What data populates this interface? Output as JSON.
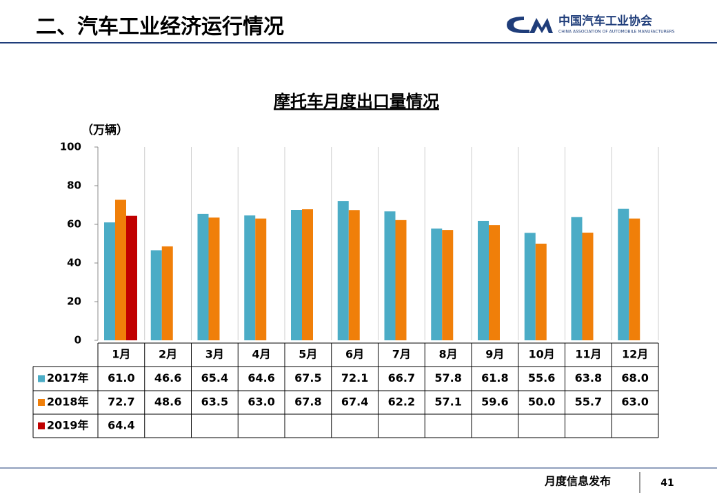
{
  "header": {
    "title": "二、汽车工业经济运行情况",
    "org_name": "中国汽车工业协会",
    "org_name_en": "CHINA ASSOCIATION OF AUTOMOBILE MANUFACTURERS"
  },
  "footer": {
    "text": "月度信息发布",
    "page": "41"
  },
  "chart_data": {
    "type": "bar",
    "title": "摩托车月度出口量情况",
    "y_label": "（万辆）",
    "categories": [
      "1月",
      "2月",
      "3月",
      "4月",
      "5月",
      "6月",
      "7月",
      "8月",
      "9月",
      "10月",
      "11月",
      "12月"
    ],
    "series": [
      {
        "name": "2017年",
        "color": "#4bacc6",
        "values": [
          61.0,
          46.6,
          65.4,
          64.6,
          67.5,
          72.1,
          66.7,
          57.8,
          61.8,
          55.6,
          63.8,
          68.0
        ],
        "value_labels": [
          "61.0",
          "46.6",
          "65.4",
          "64.6",
          "67.5",
          "72.1",
          "66.7",
          "57.8",
          "61.8",
          "55.6",
          "63.8",
          "68.0"
        ]
      },
      {
        "name": "2018年",
        "color": "#f07f09",
        "values": [
          72.7,
          48.6,
          63.5,
          63.0,
          67.8,
          67.4,
          62.2,
          57.1,
          59.6,
          50.0,
          55.7,
          63.0
        ],
        "value_labels": [
          "72.7",
          "48.6",
          "63.5",
          "63.0",
          "67.8",
          "67.4",
          "62.2",
          "57.1",
          "59.6",
          "50.0",
          "55.7",
          "63.0"
        ]
      },
      {
        "name": "2019年",
        "color": "#c00000",
        "values": [
          64.4,
          null,
          null,
          null,
          null,
          null,
          null,
          null,
          null,
          null,
          null,
          null
        ],
        "value_labels": [
          "64.4",
          null,
          null,
          null,
          null,
          null,
          null,
          null,
          null,
          null,
          null,
          null
        ]
      }
    ],
    "ylim": [
      0,
      100
    ],
    "yticks": [
      0,
      20,
      40,
      60,
      80,
      100
    ]
  }
}
